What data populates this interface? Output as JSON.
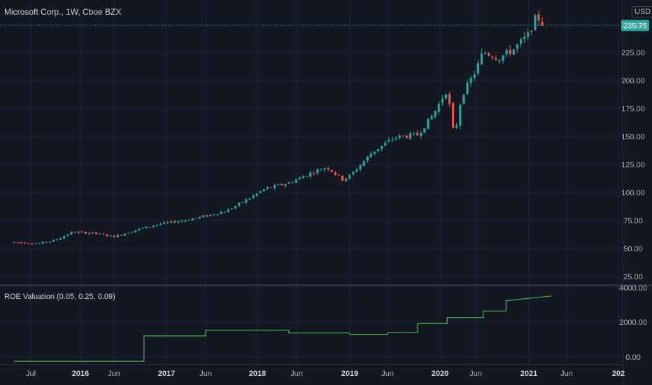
{
  "header": {
    "title": "Microsoft Corp., 1W, Cboe BZX",
    "currency": "USD"
  },
  "indicator": {
    "label": "ROE Valuation (0.05, 0.25, 0.09)"
  },
  "colors": {
    "background": "#131722",
    "grid": "#1e222d",
    "up": "#26a69a",
    "down": "#ef5350",
    "indicator_line": "#4caf50",
    "text": "#b2b5be"
  },
  "chart_data": [
    {
      "type": "candlestick",
      "title": "Microsoft Corp., 1W, Cboe BZX",
      "x_tick_labels": [
        "Jul",
        "2016",
        "Jun",
        "2017",
        "Jun",
        "2018",
        "Jun",
        "2019",
        "Jun",
        "2020",
        "Jun",
        "2021",
        "Jun",
        "202"
      ],
      "y_tick_labels": [
        "250.00",
        "225.00",
        "200.00",
        "175.00",
        "150.00",
        "125.00",
        "100.00",
        "75.00",
        "50.00",
        "25.00"
      ],
      "ylim": [
        10,
        258
      ],
      "last_price": "235.75",
      "price_path": [
        [
          "2015-05",
          46
        ],
        [
          "2015-08",
          45
        ],
        [
          "2015-10",
          48
        ],
        [
          "2015-12",
          55
        ],
        [
          "2016-03",
          54
        ],
        [
          "2016-06",
          51
        ],
        [
          "2016-09",
          57
        ],
        [
          "2016-12",
          62
        ],
        [
          "2017-03",
          65
        ],
        [
          "2017-06",
          69
        ],
        [
          "2017-09",
          74
        ],
        [
          "2017-12",
          85
        ],
        [
          "2018-02",
          93
        ],
        [
          "2018-05",
          98
        ],
        [
          "2018-08",
          107
        ],
        [
          "2018-10",
          112
        ],
        [
          "2018-12",
          101
        ],
        [
          "2019-01",
          104
        ],
        [
          "2019-04",
          125
        ],
        [
          "2019-07",
          138
        ],
        [
          "2019-10",
          140
        ],
        [
          "2019-12",
          157
        ],
        [
          "2020-02",
          180
        ],
        [
          "2020-03",
          137
        ],
        [
          "2020-04",
          174
        ],
        [
          "2020-06",
          196
        ],
        [
          "2020-07",
          213
        ],
        [
          "2020-09",
          207
        ],
        [
          "2020-11",
          215
        ],
        [
          "2021-01",
          228
        ],
        [
          "2021-02",
          244
        ],
        [
          "2021-03",
          236
        ]
      ],
      "grid": true
    },
    {
      "type": "line",
      "title": "ROE Valuation (0.05, 0.25, 0.09)",
      "y_tick_labels": [
        "4000.00",
        "2000.00",
        "0.00"
      ],
      "ylim": [
        -150,
        4050
      ],
      "x": [
        "2015-05",
        "2016-10",
        "2016-10",
        "2017-06",
        "2017-06",
        "2018-05",
        "2018-05",
        "2019-01",
        "2019-01",
        "2019-06",
        "2019-06",
        "2019-10",
        "2019-10",
        "2020-02",
        "2020-02",
        "2020-07",
        "2020-07",
        "2020-10",
        "2020-10",
        "2021-04"
      ],
      "values": [
        0,
        0,
        1380,
        1380,
        1690,
        1690,
        1540,
        1540,
        1470,
        1470,
        1560,
        1560,
        2050,
        2050,
        2380,
        2380,
        2740,
        2740,
        3300,
        3560
      ],
      "grid": true
    }
  ]
}
